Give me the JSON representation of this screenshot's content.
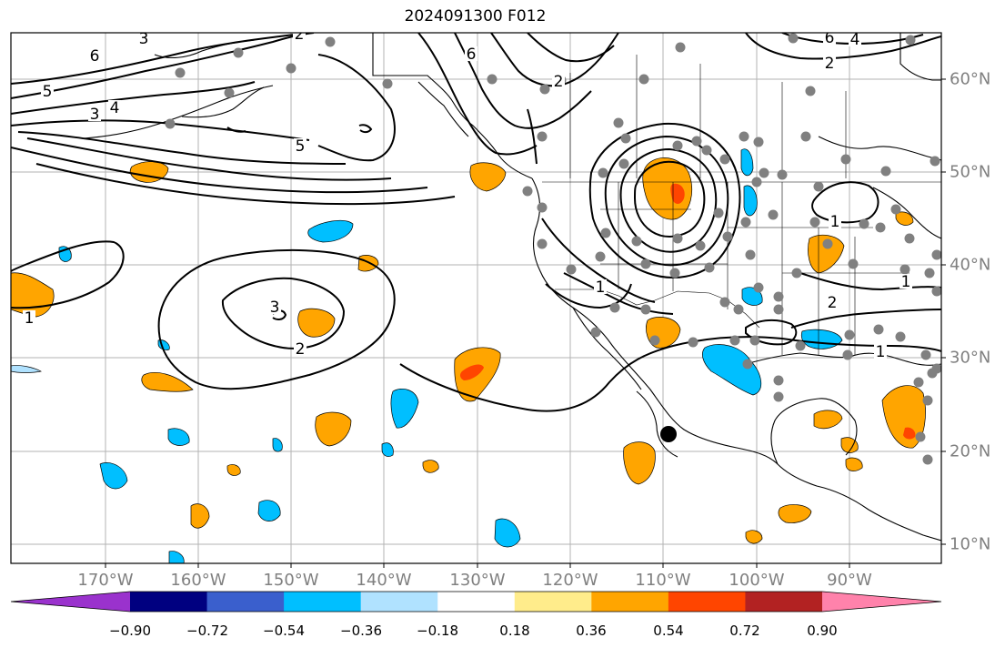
{
  "title": "2024091300 F012",
  "lon_labels": [
    "170°W",
    "160°W",
    "150°W",
    "140°W",
    "130°W",
    "120°W",
    "110°W",
    "100°W",
    "90°W"
  ],
  "lat_labels": [
    "60°N",
    "50°N",
    "40°N",
    "30°N",
    "20°N",
    "10°N"
  ],
  "colorbar": {
    "ticks": [
      "−0.90",
      "−0.72",
      "−0.54",
      "−0.36",
      "−0.18",
      "0.18",
      "0.36",
      "0.54",
      "0.72",
      "0.90"
    ],
    "colors": [
      "#9a32cd",
      "#000080",
      "#3a5fcd",
      "#00bfff",
      "#b0e2ff",
      "#ffffff",
      "#ffec8b",
      "#ffa500",
      "#ff4500",
      "#b22222",
      "#ff82ab"
    ]
  },
  "contour_labels": [
    "6",
    "3",
    "2",
    "5",
    "4",
    "3",
    "5",
    "6",
    "2",
    "6",
    "4",
    "2",
    "1",
    "3",
    "2",
    "1",
    "1",
    "2",
    "1",
    "1"
  ],
  "colors": {
    "negative_fill": "#00bfff",
    "negative_light": "#b0e2ff",
    "positive_fill": "#ffa500",
    "positive_light": "#ffec8b",
    "strong_positive": "#ff4500",
    "station": "#808080",
    "grid": "#b3b3b3"
  },
  "icons": {
    "storm_center": "black-dot-icon",
    "station": "gray-dot-icon"
  }
}
